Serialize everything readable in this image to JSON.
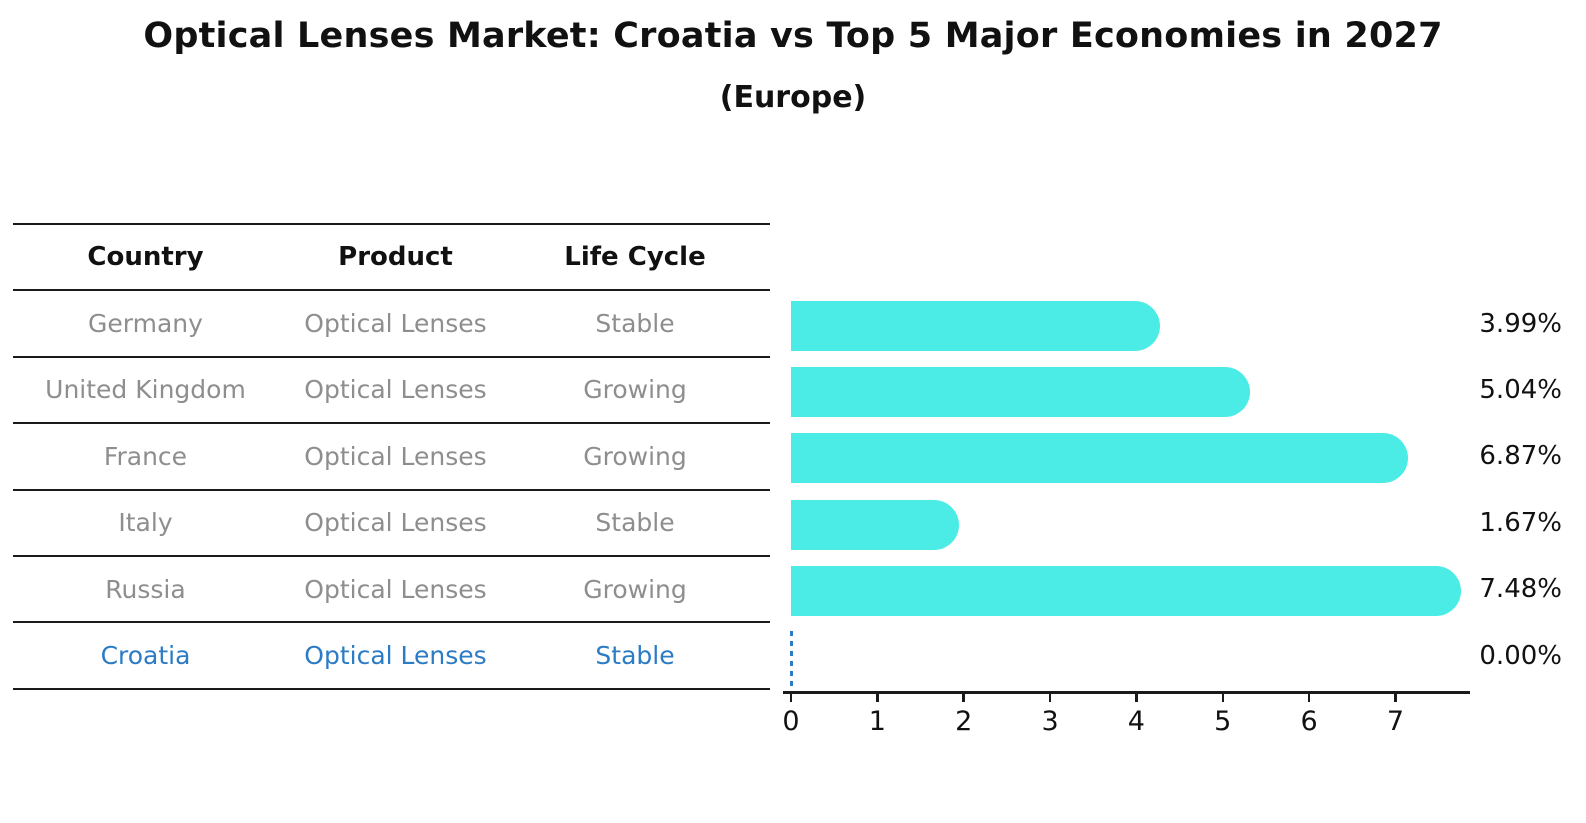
{
  "title": "Optical Lenses Market: Croatia vs Top 5 Major Economies in 2027",
  "subtitle": "(Europe)",
  "table": {
    "headers": [
      "Country",
      "Product",
      "Life Cycle"
    ],
    "rows": [
      {
        "country": "Germany",
        "product": "Optical Lenses",
        "life_cycle": "Stable",
        "highlighted": false
      },
      {
        "country": "United Kingdom",
        "product": "Optical Lenses",
        "life_cycle": "Growing",
        "highlighted": false
      },
      {
        "country": "France",
        "product": "Optical Lenses",
        "life_cycle": "Growing",
        "highlighted": false
      },
      {
        "country": "Italy",
        "product": "Optical Lenses",
        "life_cycle": "Stable",
        "highlighted": false
      },
      {
        "country": "Russia",
        "product": "Optical Lenses",
        "life_cycle": "Growing",
        "highlighted": false
      },
      {
        "country": "Croatia",
        "product": "Optical Lenses",
        "life_cycle": "Stable",
        "highlighted": true
      }
    ]
  },
  "chart_data": {
    "type": "bar",
    "orientation": "horizontal",
    "title": "Optical Lenses Market: Croatia vs Top 5 Major Economies in 2027",
    "subtitle": "(Europe)",
    "categories": [
      "Germany",
      "United Kingdom",
      "France",
      "Italy",
      "Russia",
      "Croatia"
    ],
    "values": [
      3.99,
      5.04,
      6.87,
      1.67,
      7.48,
      0.0
    ],
    "value_labels": [
      "3.99%",
      "5.04%",
      "6.87%",
      "1.67%",
      "7.48%",
      "0.00%"
    ],
    "xlabel": "",
    "ylabel": "",
    "xlim": [
      0,
      7.85
    ],
    "x_ticks": [
      "0",
      "1",
      "2",
      "3",
      "4",
      "5",
      "6",
      "7"
    ],
    "grid": false,
    "legend": "none",
    "bar_style": "rounded-right-cap",
    "zero_value_marker": "dashed-vertical-line"
  },
  "colors": {
    "bar": "#4BEBE6",
    "highlight_blue": "#2B7BC5",
    "row_text_gray": "#8E8E8E",
    "line_black": "#1A1A1A",
    "background": "#FFFFFF"
  }
}
